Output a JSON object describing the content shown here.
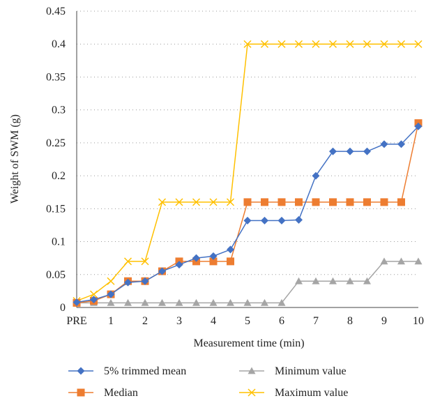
{
  "chart_data": {
    "type": "line",
    "xlabel": "Measurement time (min)",
    "ylabel": "Weight of SWM (g)",
    "ylim": [
      0,
      0.45
    ],
    "yticks": [
      "0",
      "0.05",
      "0.1",
      "0.15",
      "0.2",
      "0.25",
      "0.3",
      "0.35",
      "0.4",
      "0.45"
    ],
    "x_tick_labels": [
      "PRE",
      "1",
      "2",
      "3",
      "4",
      "5",
      "6",
      "7",
      "8",
      "9",
      "10"
    ],
    "x": [
      0,
      0.5,
      1,
      1.5,
      2,
      2.5,
      3,
      3.5,
      4,
      4.5,
      5,
      5.5,
      6,
      6.5,
      7,
      7.5,
      8,
      8.5,
      9,
      9.5,
      10
    ],
    "grid": "horizontal dotted",
    "legend_position": "bottom",
    "series": [
      {
        "name": "5% trimmed mean",
        "color": "#4472C4",
        "marker": "diamond",
        "values": [
          0.008,
          0.012,
          0.02,
          0.038,
          0.04,
          0.055,
          0.065,
          0.075,
          0.078,
          0.088,
          0.132,
          0.132,
          0.132,
          0.133,
          0.2,
          0.237,
          0.237,
          0.237,
          0.248,
          0.248,
          0.275
        ]
      },
      {
        "name": "Median",
        "color": "#ED7D31",
        "marker": "square",
        "values": [
          0.007,
          0.01,
          0.02,
          0.04,
          0.04,
          0.055,
          0.07,
          0.07,
          0.07,
          0.07,
          0.16,
          0.16,
          0.16,
          0.16,
          0.16,
          0.16,
          0.16,
          0.16,
          0.16,
          0.16,
          0.28
        ]
      },
      {
        "name": "Minimum value",
        "color": "#A5A5A5",
        "marker": "triangle",
        "values": [
          0.007,
          0.007,
          0.007,
          0.007,
          0.007,
          0.007,
          0.007,
          0.007,
          0.007,
          0.007,
          0.007,
          0.007,
          0.007,
          0.04,
          0.04,
          0.04,
          0.04,
          0.04,
          0.07,
          0.07,
          0.07
        ]
      },
      {
        "name": "Maximum value",
        "color": "#FFC000",
        "marker": "x",
        "values": [
          0.01,
          0.02,
          0.04,
          0.07,
          0.07,
          0.16,
          0.16,
          0.16,
          0.16,
          0.16,
          0.4,
          0.4,
          0.4,
          0.4,
          0.4,
          0.4,
          0.4,
          0.4,
          0.4,
          0.4,
          0.4
        ]
      }
    ]
  }
}
